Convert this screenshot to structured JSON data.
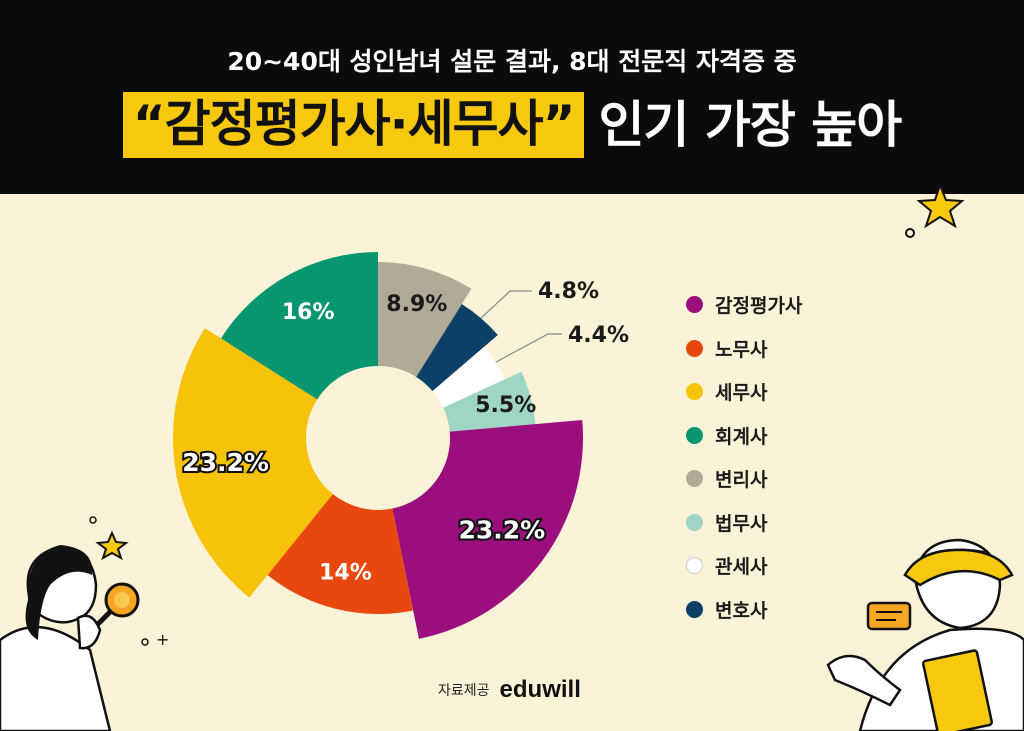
{
  "header": {
    "subtitle": "20~40대 성인남녀 설문 결과, 8대 전문직 자격증 중",
    "title_highlight": "“감정평가사·세무사”",
    "title_rest": "인기 가장 높아"
  },
  "colors": {
    "header_bg": "#0b0b0b",
    "page_bg": "#fbf3d8",
    "highlight": "#f6c90e"
  },
  "chart_data": {
    "type": "pie",
    "variant": "donut",
    "title": "",
    "categories": [
      "감정평가사",
      "노무사",
      "세무사",
      "회계사",
      "변리사",
      "법무사",
      "관세사",
      "변호사"
    ],
    "values": [
      23.2,
      14,
      23.2,
      16,
      8.9,
      5.5,
      4.4,
      4.8
    ],
    "labels": [
      "23.2%",
      "14%",
      "23.2%",
      "16%",
      "8.9%",
      "5.5%",
      "4.4%",
      "4.8%"
    ],
    "colors": [
      "#9b0e7e",
      "#e8470e",
      "#f7c308",
      "#079670",
      "#b2aa98",
      "#9ed5c3",
      "#ffffff",
      "#0c4066"
    ],
    "legend_position": "right"
  },
  "source": {
    "label": "자료제공",
    "logo": "eduwill"
  }
}
